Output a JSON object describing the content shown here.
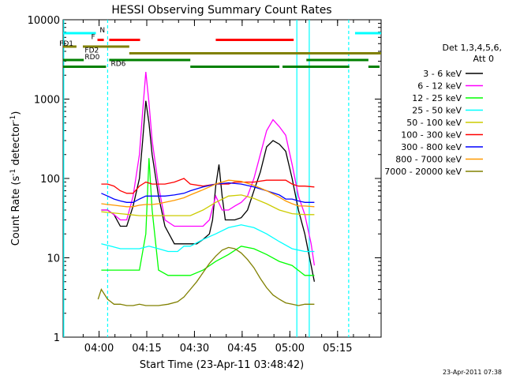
{
  "chart_data": {
    "type": "line",
    "title": "HESSI Observing Summary Count Rates",
    "xlabel": "Start Time (23-Apr-11 03:48:42)",
    "ylabel_main": "Count Rate (s",
    "ylabel_sup1": "-1",
    "ylabel_mid": " detector",
    "ylabel_sup2": "-1",
    "ylabel_end": ")",
    "y_scale": "log",
    "ylim": [
      1,
      10000
    ],
    "xlim_minutes": [
      0,
      100
    ],
    "x_ticks": [
      {
        "label": "04:00",
        "min": 11.3
      },
      {
        "label": "04:15",
        "min": 26.3
      },
      {
        "label": "04:30",
        "min": 41.3
      },
      {
        "label": "04:45",
        "min": 56.3
      },
      {
        "label": "05:00",
        "min": 71.3
      },
      {
        "label": "05:15",
        "min": 86.3
      }
    ],
    "y_ticks": [
      {
        "label": "1",
        "value": 1
      },
      {
        "label": "10",
        "value": 10
      },
      {
        "label": "100",
        "value": 100
      },
      {
        "label": "1000",
        "value": 1000
      },
      {
        "label": "10000",
        "value": 10000
      }
    ],
    "legend_title_1": "Det 1,3,4,5,6,",
    "legend_title_2": "Att 0",
    "legend_placement": "right",
    "series": [
      {
        "name": "3 - 6 keV",
        "color": "#000000",
        "x": [
          12,
          14,
          16,
          18,
          20,
          22,
          24,
          25,
          26,
          27,
          28,
          30,
          32,
          35,
          38,
          42,
          44,
          46,
          47,
          48,
          49,
          50,
          51,
          52,
          54,
          56,
          58,
          60,
          62,
          64,
          66,
          68,
          70,
          72,
          74,
          76,
          78,
          79
        ],
        "y": [
          40,
          40,
          35,
          25,
          25,
          45,
          100,
          300,
          950,
          500,
          200,
          60,
          25,
          15,
          15,
          15,
          17,
          20,
          30,
          80,
          150,
          60,
          30,
          30,
          30,
          32,
          40,
          70,
          120,
          250,
          300,
          270,
          220,
          100,
          40,
          20,
          8,
          5
        ]
      },
      {
        "name": "6 - 12 keV",
        "color": "#ff00ff",
        "x": [
          12,
          14,
          16,
          18,
          20,
          22,
          24,
          25,
          26,
          27,
          28,
          30,
          32,
          35,
          38,
          42,
          44,
          46,
          48,
          50,
          52,
          54,
          56,
          58,
          60,
          62,
          64,
          66,
          68,
          70,
          72,
          74,
          76,
          78,
          79
        ],
        "y": [
          40,
          40,
          35,
          30,
          30,
          60,
          200,
          700,
          2200,
          900,
          300,
          80,
          30,
          25,
          25,
          25,
          25,
          30,
          60,
          40,
          40,
          45,
          50,
          60,
          100,
          200,
          400,
          550,
          450,
          350,
          150,
          60,
          35,
          15,
          8
        ]
      },
      {
        "name": "12 - 25 keV",
        "color": "#00ff00",
        "x": [
          12,
          15,
          18,
          21,
          24,
          26,
          27,
          28,
          30,
          33,
          36,
          40,
          44,
          48,
          52,
          56,
          60,
          64,
          68,
          72,
          76,
          79
        ],
        "y": [
          7,
          7,
          7,
          7,
          7,
          20,
          180,
          40,
          7,
          6,
          6,
          6,
          7,
          9,
          11,
          14,
          13,
          11,
          9,
          8,
          6,
          6
        ]
      },
      {
        "name": "25 - 50 keV",
        "color": "#00ffff",
        "x": [
          12,
          15,
          18,
          21,
          24,
          27,
          30,
          33,
          36,
          38,
          40,
          44,
          48,
          52,
          56,
          60,
          64,
          68,
          72,
          76,
          79
        ],
        "y": [
          15,
          14,
          13,
          13,
          13,
          14,
          13,
          12,
          12,
          14,
          14,
          17,
          20,
          24,
          26,
          24,
          20,
          16,
          13,
          12,
          12
        ]
      },
      {
        "name": "50 - 100 keV",
        "color": "#cccc00",
        "x": [
          12,
          15,
          18,
          21,
          24,
          27,
          30,
          33,
          36,
          38,
          40,
          44,
          48,
          52,
          56,
          60,
          64,
          68,
          72,
          76,
          79
        ],
        "y": [
          38,
          37,
          36,
          35,
          34,
          34,
          34,
          34,
          34,
          34,
          34,
          40,
          50,
          60,
          62,
          56,
          48,
          40,
          36,
          35,
          35
        ]
      },
      {
        "name": "100 - 300 keV",
        "color": "#ff0000",
        "x": [
          12,
          14,
          16,
          18,
          20,
          22,
          24,
          26,
          28,
          30,
          32,
          35,
          38,
          40,
          44,
          48,
          52,
          54,
          56,
          58,
          60,
          64,
          68,
          70,
          72,
          74,
          76,
          79
        ],
        "y": [
          85,
          85,
          80,
          70,
          65,
          65,
          80,
          90,
          85,
          85,
          85,
          90,
          100,
          85,
          80,
          85,
          85,
          90,
          90,
          90,
          90,
          95,
          95,
          95,
          85,
          80,
          80,
          78
        ]
      },
      {
        "name": "300 - 800 keV",
        "color": "#0000ff",
        "x": [
          12,
          14,
          16,
          18,
          20,
          22,
          24,
          26,
          28,
          30,
          32,
          35,
          38,
          40,
          44,
          48,
          52,
          56,
          60,
          64,
          68,
          70,
          72,
          74,
          76,
          79
        ],
        "y": [
          65,
          60,
          55,
          52,
          50,
          50,
          55,
          60,
          60,
          60,
          60,
          62,
          65,
          70,
          78,
          85,
          88,
          85,
          78,
          70,
          62,
          55,
          55,
          52,
          50,
          50
        ]
      },
      {
        "name": "800 - 7000 keV",
        "color": "#ff9900",
        "x": [
          12,
          14,
          16,
          18,
          20,
          22,
          24,
          26,
          28,
          30,
          32,
          35,
          38,
          40,
          44,
          48,
          52,
          56,
          60,
          64,
          68,
          70,
          72,
          74,
          76,
          79
        ],
        "y": [
          48,
          47,
          46,
          45,
          44,
          44,
          46,
          47,
          47,
          48,
          50,
          53,
          57,
          62,
          72,
          85,
          95,
          92,
          82,
          70,
          58,
          52,
          48,
          45,
          45,
          44
        ]
      },
      {
        "name": "7000 - 20000 keV",
        "color": "#808000",
        "x": [
          11,
          12,
          14,
          16,
          18,
          20,
          22,
          24,
          26,
          28,
          30,
          33,
          36,
          38,
          40,
          42,
          44,
          46,
          48,
          50,
          52,
          54,
          56,
          58,
          60,
          62,
          64,
          66,
          68,
          70,
          72,
          74,
          76,
          79
        ],
        "y": [
          3,
          4,
          3,
          2.6,
          2.6,
          2.5,
          2.5,
          2.6,
          2.5,
          2.5,
          2.5,
          2.6,
          2.8,
          3.2,
          4,
          5,
          6.5,
          8.5,
          10.5,
          12.5,
          13.5,
          13,
          11.5,
          9.5,
          7.5,
          5.5,
          4.2,
          3.4,
          3,
          2.7,
          2.6,
          2.5,
          2.6,
          2.6
        ]
      }
    ],
    "bars": [
      {
        "label": "N",
        "color": "#00ffff",
        "segments": [
          [
            0,
            10.3
          ],
          [
            91.8,
            100
          ]
        ],
        "label_min": 11.5
      },
      {
        "label": "F",
        "color": "#ff0000",
        "segments": [
          [
            10.8,
            12.8
          ],
          [
            14.5,
            24.2
          ],
          [
            48,
            72.5
          ]
        ],
        "label_min": 8.8
      },
      {
        "label": "FD1",
        "color": "#808000",
        "segments": [
          [
            0,
            4.2
          ],
          [
            6.2,
            20.8
          ]
        ],
        "label_min": -1.2
      },
      {
        "label": "FD2",
        "color": "#808000",
        "segments": [
          [
            20.8,
            100
          ]
        ],
        "label_min": 6.8
      },
      {
        "label": "RD0",
        "color": "#008000",
        "segments": [
          [
            0,
            6.5
          ],
          [
            14.5,
            40
          ],
          [
            76.5,
            96
          ]
        ],
        "label_min": 6.8
      },
      {
        "label": "RD6",
        "color": "#008000",
        "segments": [
          [
            0,
            13.5
          ],
          [
            40,
            68
          ],
          [
            69,
            90
          ],
          [
            96,
            99.5
          ]
        ],
        "label_min": 15
      }
    ],
    "vlines": [
      {
        "min": 0.2,
        "style": "solid"
      },
      {
        "min": 14,
        "style": "dashed"
      },
      {
        "min": 73.5,
        "style": "solid"
      },
      {
        "min": 77.4,
        "style": "solid"
      },
      {
        "min": 89.8,
        "style": "dashed"
      }
    ]
  },
  "footer_timestamp": "23-Apr-2011 07:38"
}
